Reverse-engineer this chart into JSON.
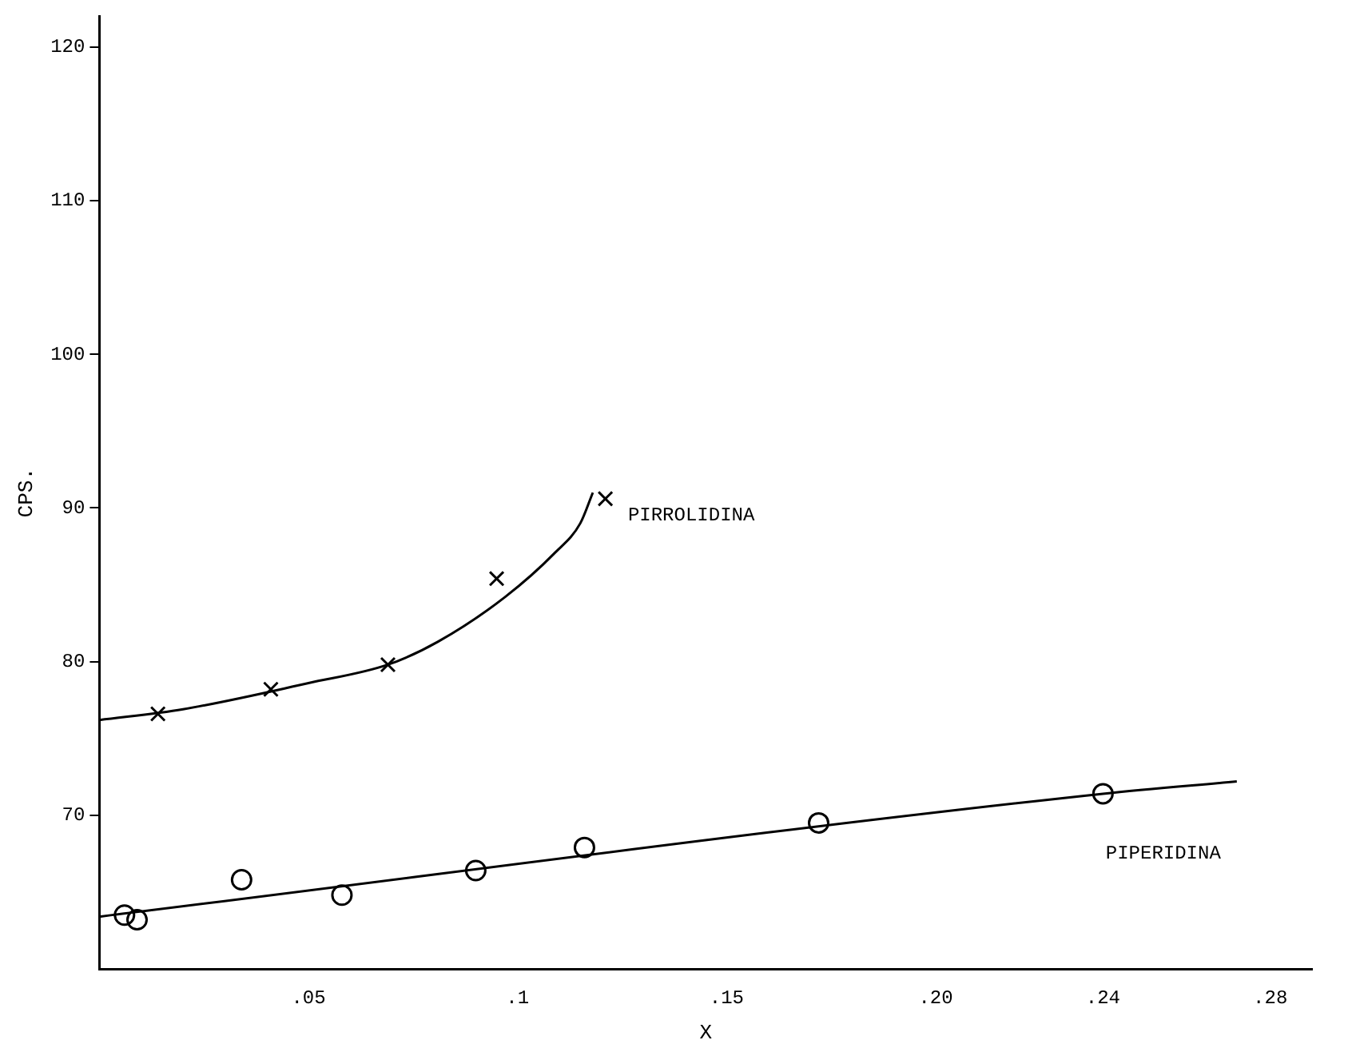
{
  "chart_data": {
    "type": "scatter",
    "xlabel": "X",
    "ylabel": "CPS.",
    "xlim": [
      0,
      0.29
    ],
    "ylim": [
      60,
      122
    ],
    "xticks": [
      {
        "value": 0.05,
        "label": ".05"
      },
      {
        "value": 0.1,
        "label": ".1"
      },
      {
        "value": 0.15,
        "label": ".15"
      },
      {
        "value": 0.2,
        "label": ".20"
      },
      {
        "value": 0.24,
        "label": ".24"
      },
      {
        "value": 0.28,
        "label": ".28"
      }
    ],
    "yticks": [
      70,
      80,
      90,
      100,
      110,
      120
    ],
    "grid": false,
    "legend": false,
    "series": [
      {
        "type": "scatter",
        "marker": "cross",
        "color": "#000000",
        "x": [
          0.014,
          0.041,
          0.069,
          0.095,
          0.121
        ],
        "values": [
          76.6,
          78.2,
          79.8,
          85.4,
          90.6
        ]
      },
      {
        "type": "line",
        "name": "PIRROLIDINA",
        "marker": "none",
        "color": "#000000",
        "x": [
          0,
          0.02,
          0.05,
          0.069,
          0.081,
          0.097,
          0.109,
          0.115,
          0.118
        ],
        "values": [
          76.2,
          76.9,
          78.6,
          79.8,
          81.3,
          84.2,
          87.1,
          89.0,
          91.0
        ]
      },
      {
        "type": "scatter",
        "marker": "circle",
        "color": "#000000",
        "x": [
          0.006,
          0.009,
          0.034,
          0.058,
          0.09,
          0.116,
          0.172,
          0.24
        ],
        "values": [
          63.5,
          63.2,
          65.8,
          64.8,
          66.4,
          67.9,
          69.5,
          71.4
        ]
      },
      {
        "type": "line",
        "name": "PIPERIDINA",
        "marker": "none",
        "color": "#000000",
        "x": [
          0,
          0.24,
          0.272
        ],
        "values": [
          63.4,
          71.4,
          72.2
        ]
      }
    ]
  }
}
